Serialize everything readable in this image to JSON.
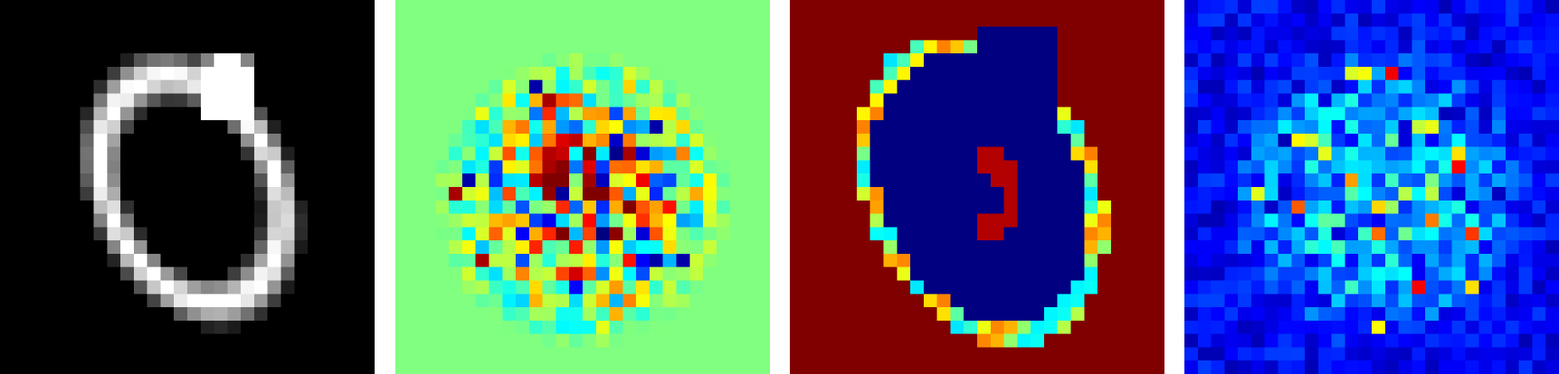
{
  "grid_size": 28,
  "panels": [
    {
      "name": "mnist-digit-grayscale",
      "colormap": "gray",
      "background": "#000000"
    },
    {
      "name": "saliency-map-jet",
      "colormap": "jet",
      "background": "#7dff7a"
    },
    {
      "name": "digit-edge-map-jet",
      "colormap": "jet",
      "background": "#990000"
    },
    {
      "name": "noise-heatmap-jet",
      "colormap": "jet",
      "background": "#00008f"
    }
  ]
}
